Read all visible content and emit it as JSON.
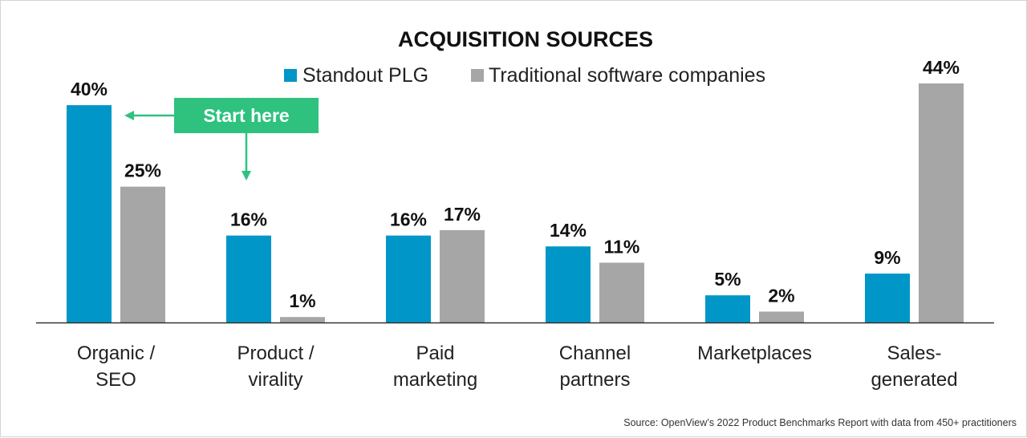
{
  "chart_data": {
    "type": "bar",
    "title": "ACQUISITION SOURCES",
    "categories": [
      [
        "Organic /",
        "SEO"
      ],
      [
        "Product /",
        "virality"
      ],
      [
        "Paid",
        "marketing"
      ],
      [
        "Channel",
        "partners"
      ],
      [
        "Marketplaces"
      ],
      [
        "Sales-",
        "generated"
      ]
    ],
    "series": [
      {
        "name": "Standout PLG",
        "color": "#0096c8",
        "values": [
          40,
          16,
          16,
          14,
          5,
          9
        ],
        "labels": [
          "40%",
          "16%",
          "16%",
          "14%",
          "5%",
          "9%"
        ]
      },
      {
        "name": "Traditional software companies",
        "color": "#a6a6a6",
        "values": [
          25,
          1,
          17,
          11,
          2,
          44
        ],
        "labels": [
          "25%",
          "1%",
          "17%",
          "11%",
          "2%",
          "44%"
        ]
      }
    ],
    "ylim": [
      0,
      44
    ],
    "xlabel": "",
    "ylabel": "",
    "legend": "top-center",
    "grid": false,
    "annotations": [
      {
        "text": "Start here",
        "color": "#2ec27e"
      }
    ],
    "source": "Source: OpenView’s 2022 Product Benchmarks Report with data from 450+ practitioners"
  }
}
